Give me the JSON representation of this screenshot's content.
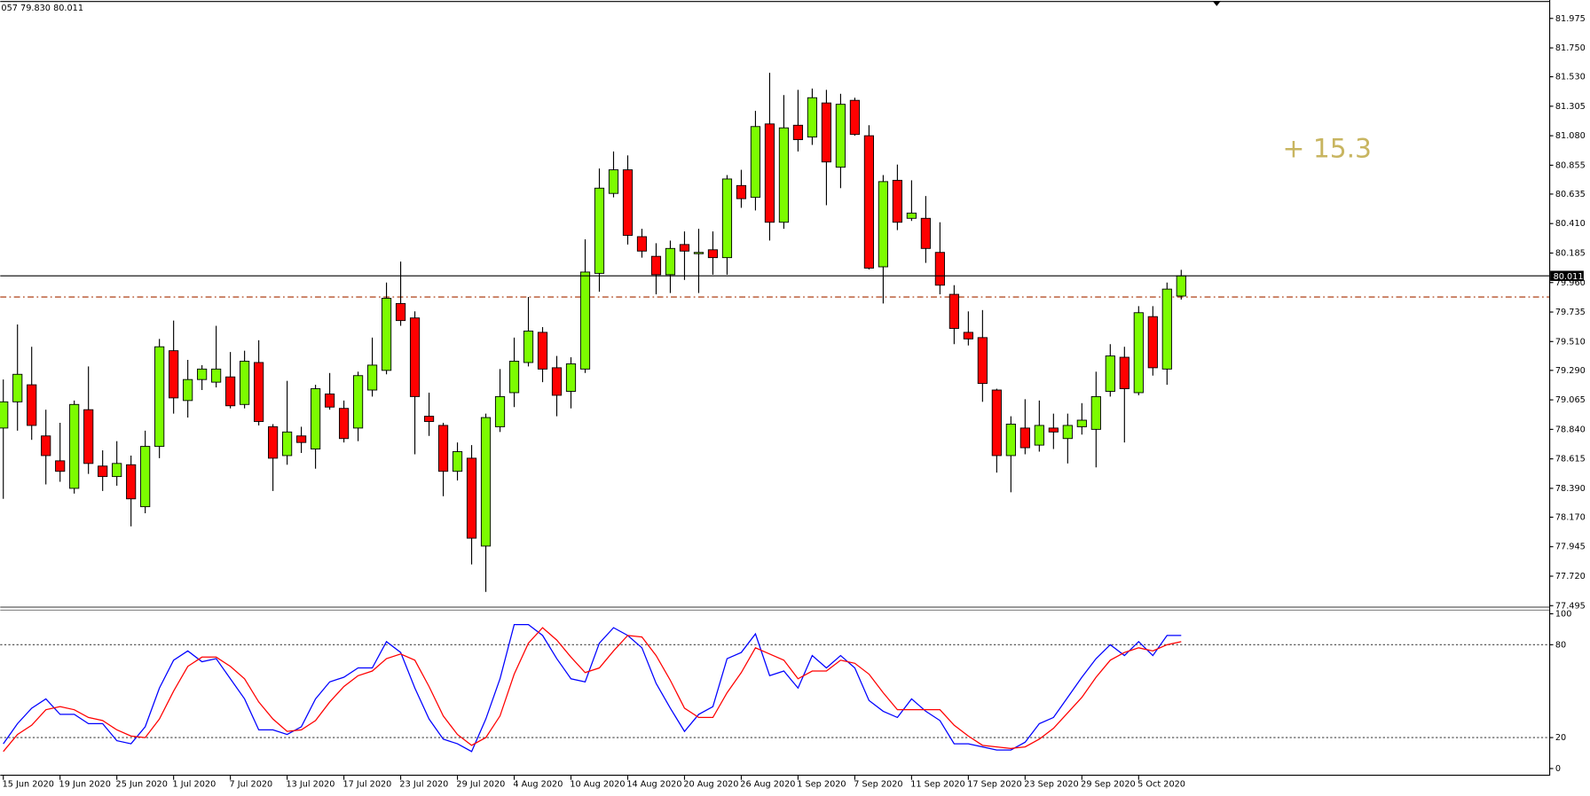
{
  "chart_data": [
    {
      "type": "candlestick",
      "header": "057 79.830 80.011",
      "annotation": "+ 15.3",
      "annotation_color": "#c8b560",
      "up_color": "#7cfc00",
      "down_color": "#ff0000",
      "level_color": "#b5502a",
      "levels": [
        79.85
      ],
      "ylim": [
        77.48,
        82.1
      ],
      "yticks": [
        81.975,
        {
          "value": 81.75,
          "label": "81.750"
        },
        {
          "value": 81.53,
          "label": "81.530"
        },
        81.305,
        {
          "value": 81.08,
          "label": "81.080"
        },
        80.855,
        80.635,
        {
          "value": 80.41,
          "label": "80.410"
        },
        80.185,
        {
          "value": 79.96,
          "label": "79.960"
        },
        79.735,
        {
          "value": 79.51,
          "label": "79.510"
        },
        {
          "value": 79.29,
          "label": "79.290"
        },
        79.065,
        {
          "value": 78.84,
          "label": "78.840"
        },
        78.615,
        {
          "value": 78.39,
          "label": "78.390"
        },
        {
          "value": 78.17,
          "label": "78.170"
        },
        77.945,
        {
          "value": 77.72,
          "label": "77.720"
        },
        77.495
      ],
      "categories": [
        "15 Jun 2020",
        null,
        null,
        null,
        "19 Jun 2020",
        null,
        null,
        null,
        "25 Jun 2020",
        null,
        null,
        null,
        "1 Jul 2020",
        null,
        null,
        null,
        "7 Jul 2020",
        null,
        null,
        null,
        "13 Jul 2020",
        null,
        null,
        null,
        "17 Jul 2020",
        null,
        null,
        null,
        "23 Jul 2020",
        null,
        null,
        null,
        "29 Jul 2020",
        null,
        null,
        null,
        "4 Aug 2020",
        null,
        null,
        null,
        "10 Aug 2020",
        null,
        null,
        null,
        "14 Aug 2020",
        null,
        null,
        null,
        "20 Aug 2020",
        null,
        null,
        null,
        "26 Aug 2020",
        null,
        null,
        null,
        "1 Sep 2020",
        null,
        null,
        null,
        "7 Sep 2020",
        null,
        null,
        null,
        "11 Sep 2020",
        null,
        null,
        null,
        "17 Sep 2020",
        null,
        null,
        null,
        "23 Sep 2020",
        null,
        null,
        null,
        "29 Sep 2020",
        null,
        null,
        null,
        "5 Oct 2020",
        null,
        null,
        null
      ],
      "open": [
        78.85,
        79.05,
        79.18,
        78.79,
        78.6,
        78.39,
        78.99,
        78.56,
        78.48,
        78.57,
        78.25,
        78.71,
        79.44,
        79.06,
        79.22,
        79.2,
        79.24,
        79.03,
        79.35,
        78.86,
        78.64,
        78.79,
        78.69,
        79.11,
        79.0,
        78.85,
        79.14,
        79.29,
        79.8,
        79.69,
        78.94,
        78.87,
        78.52,
        78.62,
        77.95,
        78.86,
        79.12,
        79.35,
        79.58,
        79.31,
        79.13,
        79.3,
        80.03,
        80.64,
        80.82,
        80.31,
        80.16,
        80.02,
        80.25,
        80.18,
        80.21,
        80.15,
        80.7,
        80.61,
        81.17,
        80.42,
        81.16,
        81.07,
        81.33,
        80.84,
        81.35,
        81.08,
        80.08,
        80.74,
        80.45,
        80.45,
        80.19,
        79.87,
        79.58,
        79.54,
        79.14,
        78.64,
        78.85,
        78.72,
        78.85,
        78.77,
        78.86,
        78.84,
        79.13,
        79.39,
        79.12,
        79.7,
        79.3,
        79.857
      ],
      "high": [
        79.22,
        79.64,
        79.47,
        78.99,
        78.89,
        79.06,
        79.32,
        78.68,
        78.75,
        78.64,
        78.83,
        79.53,
        79.67,
        79.37,
        79.33,
        79.63,
        79.43,
        79.44,
        79.52,
        78.88,
        79.21,
        78.86,
        79.18,
        79.27,
        79.06,
        79.28,
        79.54,
        79.96,
        80.12,
        79.74,
        79.12,
        78.89,
        78.74,
        78.72,
        78.96,
        79.3,
        79.54,
        79.85,
        79.62,
        79.4,
        79.39,
        80.29,
        80.83,
        80.96,
        80.93,
        80.37,
        80.26,
        80.28,
        80.35,
        80.37,
        80.35,
        80.78,
        80.82,
        81.27,
        81.56,
        81.39,
        81.43,
        81.44,
        81.43,
        81.4,
        81.37,
        81.16,
        80.78,
        80.86,
        80.74,
        80.62,
        80.42,
        79.94,
        79.74,
        79.75,
        79.15,
        78.94,
        79.07,
        79.06,
        78.96,
        78.96,
        79.04,
        79.28,
        79.49,
        79.47,
        79.78,
        79.78,
        79.96,
        80.057
      ],
      "low": [
        78.31,
        78.83,
        78.76,
        78.42,
        78.44,
        78.35,
        78.5,
        78.37,
        78.41,
        78.1,
        78.2,
        78.62,
        78.96,
        78.93,
        79.14,
        79.16,
        79.0,
        79.0,
        78.87,
        78.37,
        78.57,
        78.66,
        78.54,
        78.99,
        78.74,
        78.75,
        79.09,
        79.26,
        79.63,
        78.65,
        78.79,
        78.33,
        78.45,
        77.81,
        77.6,
        78.82,
        79.01,
        79.32,
        79.2,
        78.94,
        79.0,
        79.27,
        79.89,
        80.61,
        80.25,
        80.15,
        79.87,
        79.88,
        79.98,
        79.88,
        80.02,
        80.02,
        80.53,
        80.51,
        80.28,
        80.37,
        80.96,
        81.01,
        80.55,
        80.68,
        81.08,
        80.06,
        79.8,
        80.36,
        80.43,
        80.11,
        79.87,
        79.49,
        79.48,
        79.05,
        78.51,
        78.36,
        78.65,
        78.67,
        78.69,
        78.58,
        78.8,
        78.55,
        79.09,
        78.74,
        79.1,
        79.25,
        79.18,
        79.83
      ],
      "close": [
        79.05,
        79.26,
        78.87,
        78.64,
        78.52,
        79.03,
        78.58,
        78.48,
        78.58,
        78.31,
        78.71,
        79.47,
        79.08,
        79.22,
        79.3,
        79.3,
        79.02,
        79.36,
        78.9,
        78.62,
        78.82,
        78.74,
        79.15,
        79.01,
        78.77,
        79.25,
        79.33,
        79.84,
        79.67,
        79.09,
        78.9,
        78.52,
        78.67,
        78.01,
        78.93,
        79.09,
        79.36,
        79.59,
        79.3,
        79.1,
        79.34,
        80.04,
        80.68,
        80.82,
        80.32,
        80.2,
        80.02,
        80.22,
        80.2,
        80.19,
        80.15,
        80.75,
        80.6,
        81.15,
        80.42,
        81.14,
        81.05,
        81.37,
        80.88,
        81.32,
        81.09,
        80.07,
        80.73,
        80.42,
        80.49,
        80.22,
        79.94,
        79.61,
        79.53,
        79.19,
        78.64,
        78.88,
        78.7,
        78.87,
        78.82,
        78.87,
        78.91,
        79.09,
        79.4,
        79.15,
        79.73,
        79.31,
        79.91,
        80.011
      ]
    },
    {
      "type": "line",
      "ylim": [
        -4,
        102
      ],
      "yticks": [
        0,
        20,
        80,
        100
      ],
      "levels": [
        20,
        80
      ],
      "series": [
        {
          "color": "#0000ff",
          "values": [
            16,
            29,
            39,
            45,
            35,
            35,
            29,
            29,
            18,
            16,
            27,
            52,
            70,
            76,
            69,
            71,
            58,
            45,
            25,
            25,
            22,
            27,
            45,
            56,
            59,
            65,
            65,
            82,
            75,
            52,
            32,
            19,
            16,
            11,
            32,
            58,
            93,
            93,
            86,
            71,
            58,
            56,
            81,
            91,
            86,
            78,
            55,
            39,
            24,
            35,
            40,
            71,
            75,
            87,
            60,
            63,
            52,
            73,
            65,
            73,
            65,
            44,
            37,
            33,
            45,
            37,
            31,
            16,
            16,
            14,
            12,
            12,
            17,
            29,
            33,
            46,
            59,
            71,
            80,
            73,
            82,
            73,
            86,
            86
          ]
        },
        {
          "color": "#ff0000",
          "values": [
            11,
            22,
            28,
            38,
            40,
            38,
            33,
            31,
            25,
            21,
            20,
            32,
            50,
            66,
            72,
            72,
            66,
            58,
            43,
            32,
            24,
            25,
            31,
            43,
            53,
            60,
            63,
            71,
            74,
            70,
            53,
            34,
            22,
            15,
            20,
            34,
            61,
            81,
            91,
            83,
            72,
            62,
            65,
            76,
            86,
            85,
            73,
            57,
            39,
            33,
            33,
            49,
            62,
            78,
            74,
            70,
            58,
            63,
            63,
            70,
            68,
            61,
            49,
            38,
            38,
            38,
            38,
            28,
            21,
            15,
            14,
            13,
            14,
            19,
            26,
            36,
            46,
            59,
            70,
            75,
            78,
            76,
            80,
            82
          ]
        }
      ]
    }
  ]
}
